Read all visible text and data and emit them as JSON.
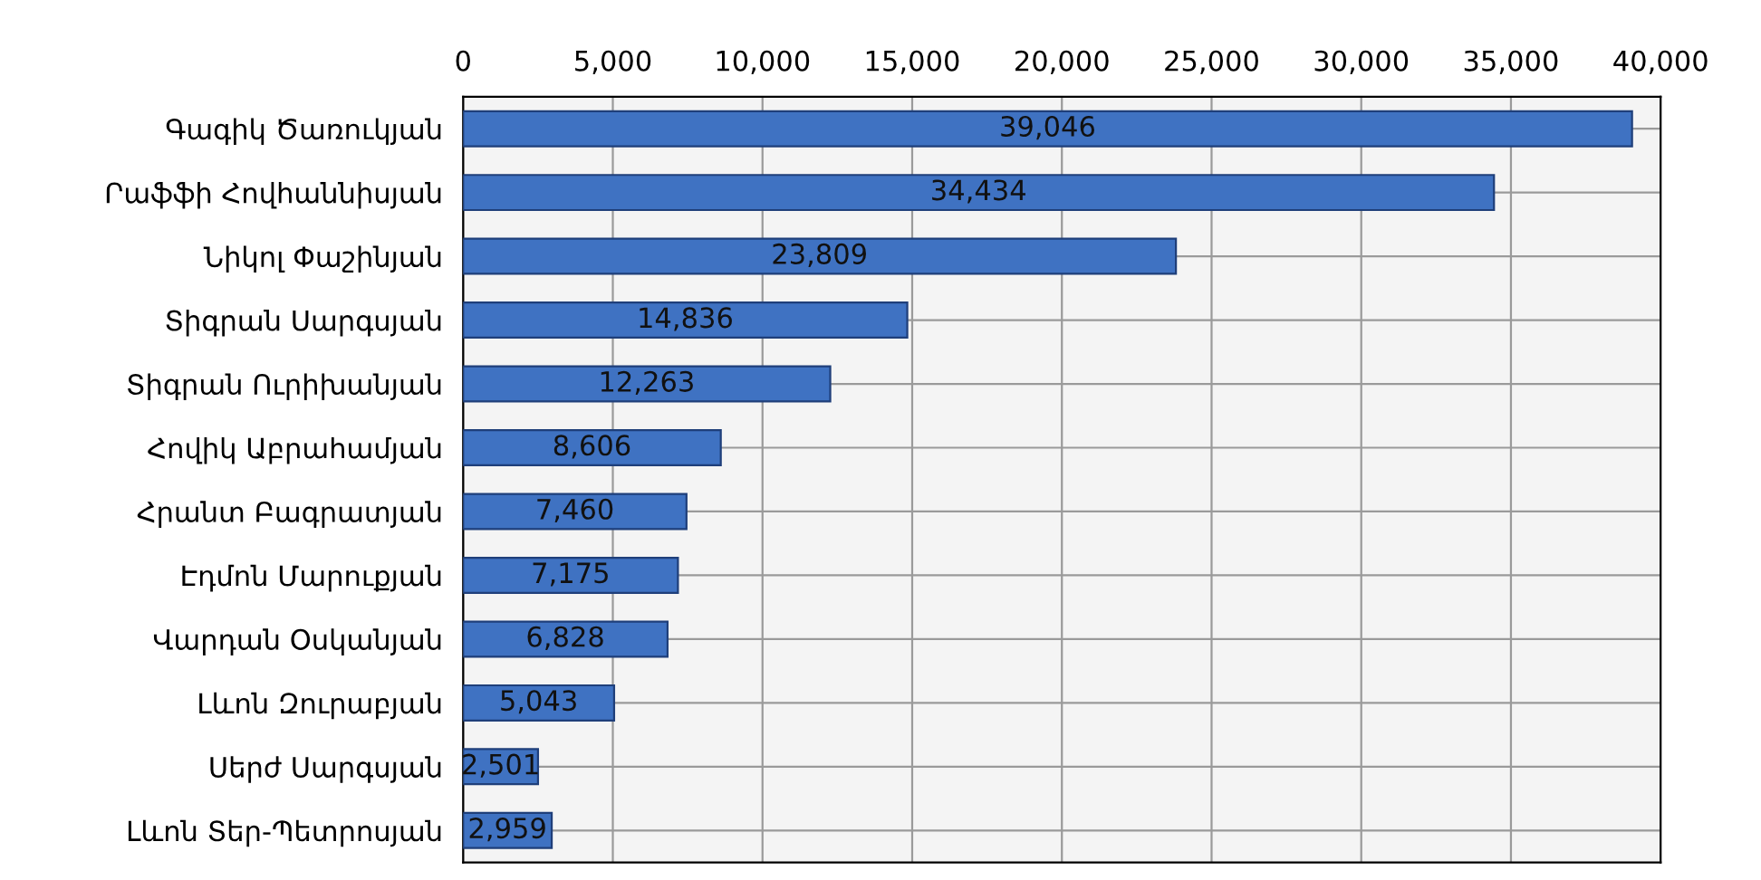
{
  "chart_data": {
    "type": "bar",
    "orientation": "horizontal",
    "categories": [
      "Գագիկ Ծառուկյան",
      "Րաֆֆի Հովհաննիսյան",
      "Նիկոլ Փաշինյան",
      "Տիգրան Սարգսյան",
      "Տիգրան Ուրիխանյան",
      "Հովիկ Աբրահամյան",
      "Հրանտ Բագրատյան",
      "Էդմոն Մարուքյան",
      "Վարդան Օսկանյան",
      "Լևոն Զուրաբյան",
      "Սերժ Սարգսյան",
      "Լևոն Տեր-Պետրոսյան"
    ],
    "values": [
      39046,
      34434,
      23809,
      14836,
      12263,
      8606,
      7460,
      7175,
      6828,
      5043,
      2501,
      2959
    ],
    "value_labels": [
      "39,046",
      "34,434",
      "23,809",
      "14,836",
      "12,263",
      "8,606",
      "7,460",
      "7,175",
      "6,828",
      "5,043",
      "2,501",
      "2,959"
    ],
    "color": "#3f72c2",
    "xlim": [
      0,
      40000
    ],
    "xticks": [
      {
        "value": 0,
        "label": "0"
      },
      {
        "value": 5000,
        "label": "5,000"
      },
      {
        "value": 10000,
        "label": "10,000"
      },
      {
        "value": 15000,
        "label": "15,000"
      },
      {
        "value": 20000,
        "label": "20,000"
      },
      {
        "value": 25000,
        "label": "25,000"
      },
      {
        "value": 30000,
        "label": "30,000"
      },
      {
        "value": 35000,
        "label": "35,000"
      },
      {
        "value": 40000,
        "label": "40,000"
      }
    ],
    "grid": true
  }
}
